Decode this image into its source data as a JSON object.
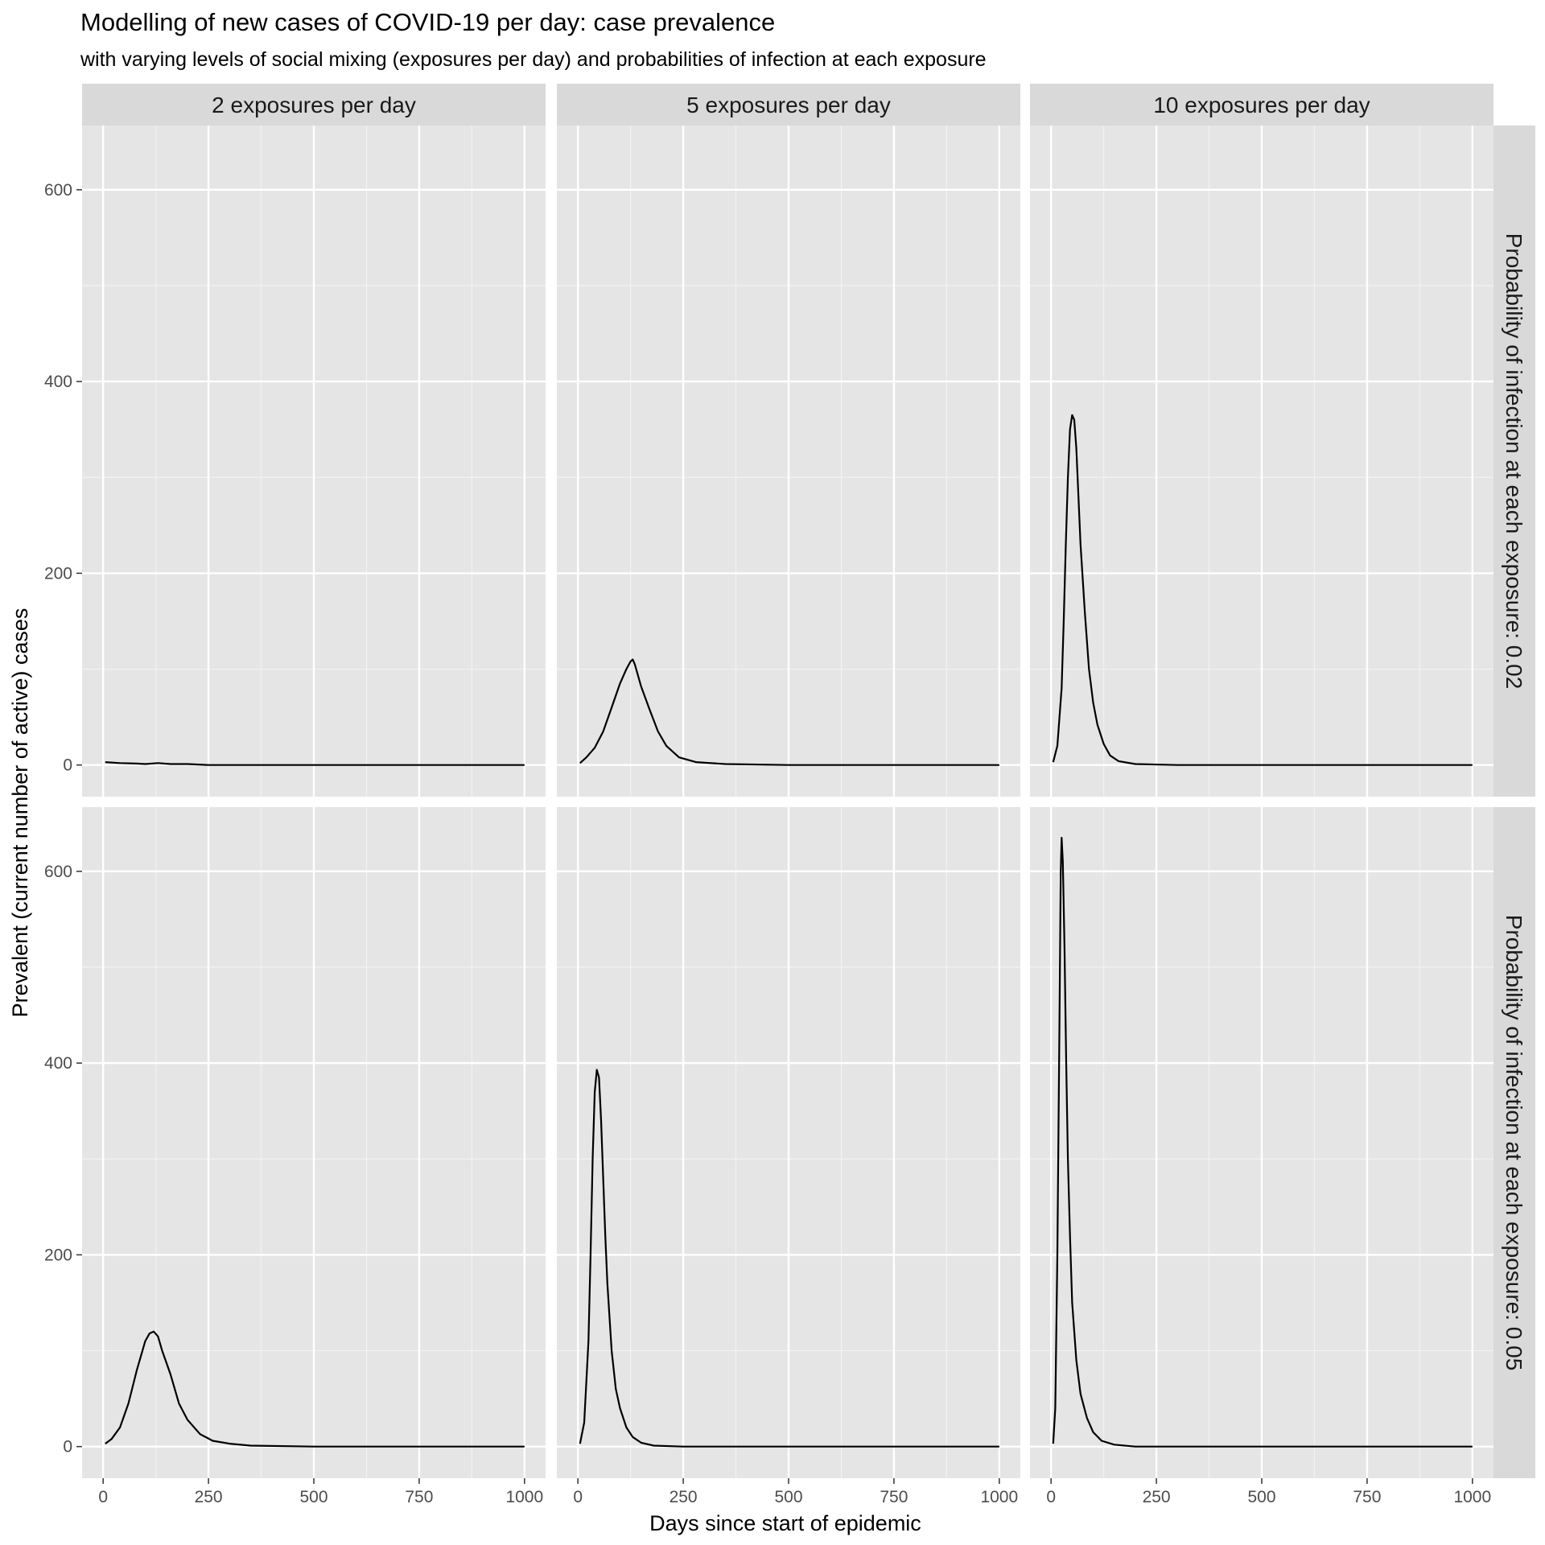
{
  "chart_data": {
    "type": "line",
    "title": "Modelling of new cases of COVID-19 per day: case prevalence",
    "subtitle": "with varying levels of social mixing (exposures per day) and probabilities of infection at each exposure",
    "xlabel": "Days since start of epidemic",
    "ylabel": "Prevalent (current number of active) cases",
    "xlim": [
      0,
      1000
    ],
    "ylim": [
      0,
      650
    ],
    "x_ticks": [
      0,
      250,
      500,
      750,
      1000
    ],
    "y_ticks": [
      0,
      200,
      400,
      600
    ],
    "grid": true,
    "legend": "none",
    "line_color": "#000000",
    "panel_background": "#e5e5e5",
    "strip_background": "#d9d9d9",
    "columns": [
      "2 exposures per day",
      "5 exposures per day",
      "10 exposures per day"
    ],
    "rows": [
      "Probability of infection at each exposure: 0.02",
      "Probability of infection at each exposure: 0.05"
    ],
    "panels": [
      {
        "column": "2 exposures per day",
        "row": "Probability of infection at each exposure: 0.02",
        "x": [
          5,
          40,
          80,
          100,
          130,
          160,
          200,
          250,
          300,
          400,
          600,
          1000
        ],
        "y": [
          3,
          2,
          1.5,
          1,
          2,
          1,
          1,
          0,
          0,
          0,
          0,
          0
        ]
      },
      {
        "column": "5 exposures per day",
        "row": "Probability of infection at each exposure: 0.02",
        "x": [
          5,
          20,
          40,
          60,
          80,
          100,
          115,
          125,
          130,
          135,
          150,
          170,
          190,
          210,
          240,
          280,
          350,
          500,
          1000
        ],
        "y": [
          2,
          8,
          18,
          35,
          60,
          85,
          100,
          108,
          110,
          105,
          82,
          58,
          35,
          20,
          8,
          3,
          1,
          0,
          0
        ]
      },
      {
        "column": "10 exposures per day",
        "row": "Probability of infection at each exposure: 0.02",
        "x": [
          5,
          15,
          25,
          30,
          35,
          40,
          45,
          50,
          55,
          60,
          65,
          70,
          80,
          90,
          100,
          110,
          125,
          140,
          160,
          200,
          300,
          1000
        ],
        "y": [
          3,
          20,
          80,
          150,
          230,
          300,
          350,
          365,
          360,
          330,
          280,
          230,
          160,
          100,
          65,
          42,
          22,
          10,
          4,
          1,
          0,
          0
        ]
      },
      {
        "column": "2 exposures per day",
        "row": "Probability of infection at each exposure: 0.05",
        "x": [
          5,
          20,
          40,
          60,
          80,
          100,
          110,
          120,
          130,
          140,
          160,
          180,
          200,
          230,
          260,
          300,
          350,
          500,
          1000
        ],
        "y": [
          3,
          8,
          20,
          45,
          80,
          110,
          118,
          120,
          115,
          100,
          75,
          45,
          28,
          13,
          6,
          3,
          1,
          0,
          0
        ]
      },
      {
        "column": "5 exposures per day",
        "row": "Probability of infection at each exposure: 0.05",
        "x": [
          5,
          15,
          25,
          30,
          35,
          40,
          45,
          50,
          55,
          60,
          65,
          70,
          80,
          90,
          100,
          115,
          130,
          150,
          180,
          250,
          1000
        ],
        "y": [
          3,
          25,
          110,
          200,
          300,
          370,
          393,
          385,
          340,
          280,
          220,
          170,
          100,
          60,
          40,
          20,
          10,
          4,
          1,
          0,
          0
        ]
      },
      {
        "column": "10 exposures per day",
        "row": "Probability of infection at each exposure: 0.05",
        "x": [
          5,
          10,
          15,
          20,
          23,
          25,
          28,
          32,
          36,
          40,
          45,
          50,
          60,
          70,
          85,
          100,
          120,
          150,
          200,
          300,
          1000
        ],
        "y": [
          3,
          40,
          200,
          450,
          600,
          635,
          610,
          520,
          400,
          300,
          220,
          150,
          90,
          55,
          30,
          15,
          6,
          2,
          0,
          0,
          0
        ]
      }
    ]
  }
}
